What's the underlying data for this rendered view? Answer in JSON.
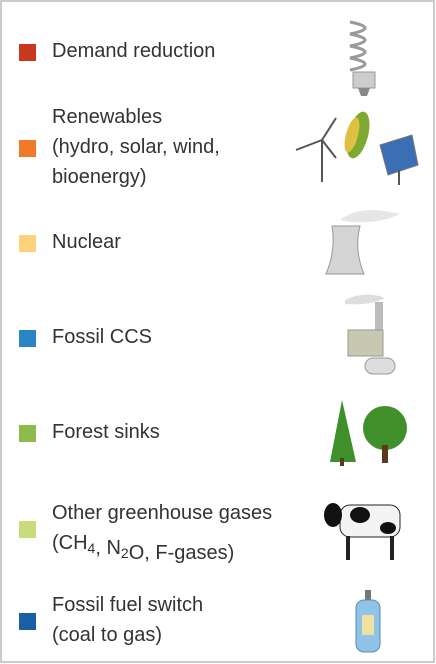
{
  "items": [
    {
      "color": "#c8381e",
      "lines": [
        [
          "Demand reduction"
        ]
      ]
    },
    {
      "color": "#f07a2a",
      "lines": [
        [
          "Renewables"
        ],
        [
          "(hydro, solar, wind,"
        ],
        [
          "bioenergy)"
        ]
      ]
    },
    {
      "color": "#fcd27a",
      "lines": [
        [
          "Nuclear"
        ]
      ]
    },
    {
      "color": "#2b84c6",
      "lines": [
        [
          "Fossil CCS"
        ]
      ]
    },
    {
      "color": "#8dba4a",
      "lines": [
        [
          "Forest sinks"
        ]
      ]
    },
    {
      "color": "#c9dc7c",
      "lines": [
        [
          "Other greenhouse gases"
        ],
        [
          "(CH",
          {
            "sub": "4"
          },
          ", N",
          {
            "sub": "2"
          },
          "O, F-gases)"
        ]
      ]
    },
    {
      "color": "#1a5ea6",
      "lines": [
        [
          "Fossil fuel switch"
        ],
        [
          "(coal to gas)"
        ]
      ]
    }
  ]
}
